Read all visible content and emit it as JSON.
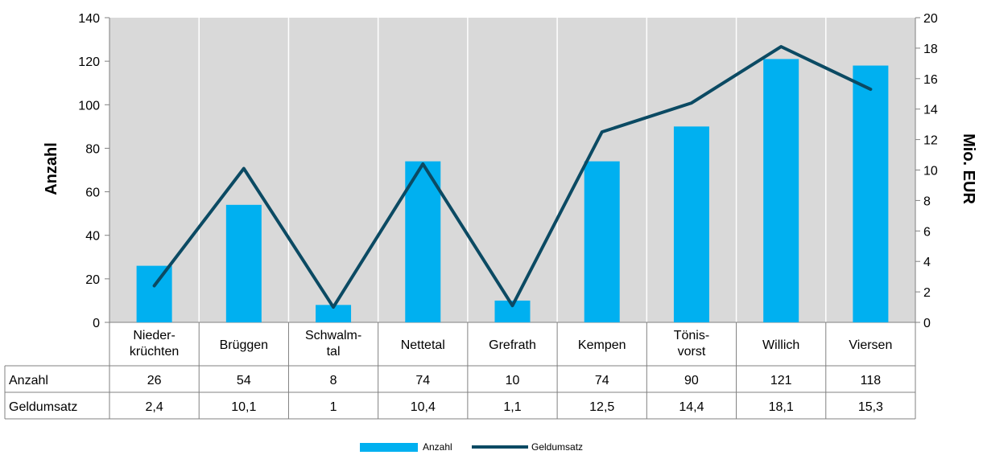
{
  "chart_data": {
    "type": "bar+line",
    "categories": [
      [
        "Nieder-",
        "krüchten"
      ],
      [
        "Brüggen"
      ],
      [
        "Schwalm-",
        "tal"
      ],
      [
        "Nettetal"
      ],
      [
        "Grefrath"
      ],
      [
        "Kempen"
      ],
      [
        "Tönis-",
        "vorst"
      ],
      [
        "Willich"
      ],
      [
        "Viersen"
      ]
    ],
    "series": [
      {
        "name": "Anzahl",
        "type": "bar",
        "axis": "left",
        "color": "#00B0F0",
        "values": [
          26,
          54,
          8,
          74,
          10,
          74,
          90,
          121,
          118
        ],
        "labels": [
          "26",
          "54",
          "8",
          "74",
          "10",
          "74",
          "90",
          "121",
          "118"
        ]
      },
      {
        "name": "Geldumsatz",
        "type": "line",
        "axis": "right",
        "color": "#0B4A63",
        "values": [
          2.4,
          10.1,
          1,
          10.4,
          1.1,
          12.5,
          14.4,
          18.1,
          15.3
        ],
        "labels": [
          "2,4",
          "10,1",
          "1",
          "10,4",
          "1,1",
          "12,5",
          "14,4",
          "18,1",
          "15,3"
        ]
      }
    ],
    "ylabel_left": "Anzahl",
    "ylabel_right": "Mio. EUR",
    "ylim_left": [
      0,
      140
    ],
    "yticks_left": [
      0,
      20,
      40,
      60,
      80,
      100,
      120,
      140
    ],
    "ylim_right": [
      0,
      20
    ],
    "yticks_right": [
      0,
      2,
      4,
      6,
      8,
      10,
      12,
      14,
      16,
      18,
      20
    ],
    "grid": "vertical",
    "plot_background": "#D9D9D9",
    "legend": "bottom-center",
    "data_table": true
  }
}
